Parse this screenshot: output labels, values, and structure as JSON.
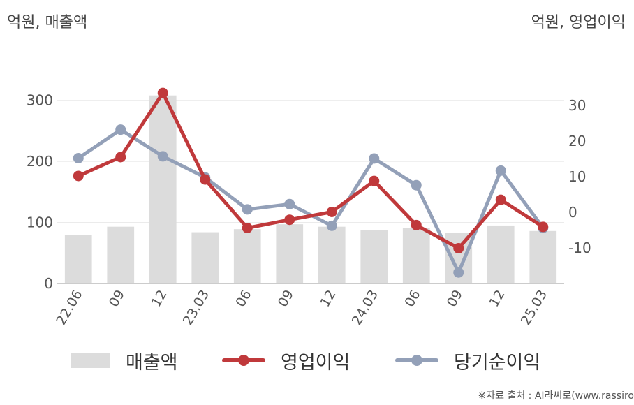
{
  "unit_left": "억원, 매출액",
  "unit_right": "억원, 영업이익",
  "source": "※자료 출처 : AI라씨로(www.rassiro",
  "colors": {
    "bar": "#dcdcdc",
    "operating_profit": "#c0393b",
    "net_income": "#93a0b8",
    "axis": "#bbbbbb",
    "grid": "#e8e8e8"
  },
  "chart_data": {
    "type": "bar",
    "categories": [
      "22.06",
      "09",
      "12",
      "23.03",
      "06",
      "09",
      "12",
      "24.03",
      "06",
      "09",
      "12",
      "25.03"
    ],
    "y_left": {
      "ylim": [
        0,
        350
      ],
      "ticks": [
        0,
        100,
        200,
        300
      ]
    },
    "y_right": {
      "ylim": [
        -20,
        40
      ],
      "ticks": [
        -10,
        0,
        10,
        20,
        30
      ]
    },
    "grid": true,
    "legend_position": "bottom",
    "series": [
      {
        "name": "매출액",
        "type": "bar",
        "axis": "left",
        "values": [
          79,
          93,
          308,
          84,
          89,
          97,
          93,
          88,
          91,
          83,
          95,
          86
        ]
      },
      {
        "name": "영업이익",
        "type": "line",
        "axis": "right",
        "values": [
          10.2,
          15.5,
          33.5,
          9.2,
          -4.4,
          -2.1,
          0.1,
          8.8,
          -3.6,
          -10.1,
          3.5,
          -4.1
        ]
      },
      {
        "name": "당기순이익",
        "type": "line",
        "axis": "right",
        "values": [
          15.2,
          23.2,
          15.7,
          9.8,
          0.8,
          2.3,
          -3.8,
          15.1,
          7.6,
          -16.9,
          11.7,
          -4.4
        ]
      }
    ]
  }
}
